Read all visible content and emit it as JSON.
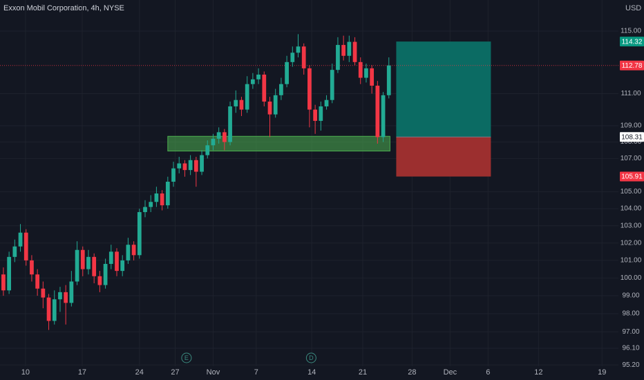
{
  "chart_data": {
    "type": "candlestick",
    "title": "Exxon Mobil Corporation, 4h, NYSE",
    "currency": "USD",
    "up_color": "#22ab94",
    "down_color": "#f23645",
    "log_scale": true,
    "grid": true,
    "xlim": [
      -0.6,
      108.5
    ],
    "ylim": [
      95.13,
      117.04
    ],
    "xticks": [
      {
        "value": 3.9,
        "label": "10"
      },
      {
        "value": 13.9,
        "label": "17"
      },
      {
        "value": 24.0,
        "label": "24"
      },
      {
        "value": 30.3,
        "label": "27"
      },
      {
        "value": 37.0,
        "label": "Nov"
      },
      {
        "value": 44.6,
        "label": "7"
      },
      {
        "value": 54.4,
        "label": "14"
      },
      {
        "value": 63.4,
        "label": "21"
      },
      {
        "value": 72.1,
        "label": "28"
      },
      {
        "value": 78.8,
        "label": "Dec"
      },
      {
        "value": 85.5,
        "label": "6"
      },
      {
        "value": 94.4,
        "label": "12"
      },
      {
        "value": 105.6,
        "label": "19"
      }
    ],
    "yticks": [
      {
        "value": 115,
        "label": "115.00"
      },
      {
        "value": 111,
        "label": "111.00"
      },
      {
        "value": 109,
        "label": "109.00"
      },
      {
        "value": 108,
        "label": "108.00"
      },
      {
        "value": 107,
        "label": "107.00"
      },
      {
        "value": 105,
        "label": "105.00"
      },
      {
        "value": 104,
        "label": "104.00"
      },
      {
        "value": 103,
        "label": "103.00"
      },
      {
        "value": 102,
        "label": "102.00"
      },
      {
        "value": 101,
        "label": "101.00"
      },
      {
        "value": 100,
        "label": "100.00"
      },
      {
        "value": 99,
        "label": "99.00"
      },
      {
        "value": 98,
        "label": "98.00"
      },
      {
        "value": 97,
        "label": "97.00"
      },
      {
        "value": 96.1,
        "label": "96.10"
      },
      {
        "value": 95.2,
        "label": "95.20"
      }
    ],
    "candles": [
      {
        "o": 100.2,
        "h": 100.6,
        "l": 99.0,
        "c": 99.3
      },
      {
        "o": 99.3,
        "h": 101.5,
        "l": 99.1,
        "c": 101.2
      },
      {
        "o": 101.2,
        "h": 102.2,
        "l": 100.9,
        "c": 101.8
      },
      {
        "o": 101.8,
        "h": 103.1,
        "l": 101.5,
        "c": 102.6
      },
      {
        "o": 102.6,
        "h": 102.8,
        "l": 100.7,
        "c": 101.0
      },
      {
        "o": 101.0,
        "h": 101.3,
        "l": 99.8,
        "c": 100.2
      },
      {
        "o": 100.2,
        "h": 100.5,
        "l": 99.0,
        "c": 99.4
      },
      {
        "o": 99.4,
        "h": 99.8,
        "l": 98.3,
        "c": 98.9
      },
      {
        "o": 98.9,
        "h": 99.1,
        "l": 97.1,
        "c": 97.6
      },
      {
        "o": 97.6,
        "h": 99.3,
        "l": 97.4,
        "c": 98.8
      },
      {
        "o": 98.8,
        "h": 99.5,
        "l": 98.1,
        "c": 99.2
      },
      {
        "o": 99.2,
        "h": 99.6,
        "l": 97.4,
        "c": 98.6
      },
      {
        "o": 98.6,
        "h": 100.4,
        "l": 98.4,
        "c": 99.8
      },
      {
        "o": 99.8,
        "h": 102.1,
        "l": 99.6,
        "c": 101.6
      },
      {
        "o": 101.6,
        "h": 101.8,
        "l": 100.1,
        "c": 100.5
      },
      {
        "o": 100.5,
        "h": 101.6,
        "l": 100.2,
        "c": 101.2
      },
      {
        "o": 101.2,
        "h": 101.4,
        "l": 99.7,
        "c": 100.1
      },
      {
        "o": 100.1,
        "h": 100.4,
        "l": 99.2,
        "c": 99.6
      },
      {
        "o": 99.6,
        "h": 101.1,
        "l": 99.4,
        "c": 100.8
      },
      {
        "o": 100.8,
        "h": 101.9,
        "l": 100.5,
        "c": 101.5
      },
      {
        "o": 101.5,
        "h": 101.7,
        "l": 100.1,
        "c": 100.4
      },
      {
        "o": 100.4,
        "h": 101.3,
        "l": 100.1,
        "c": 101.0
      },
      {
        "o": 101.0,
        "h": 102.3,
        "l": 100.8,
        "c": 101.9
      },
      {
        "o": 101.9,
        "h": 102.1,
        "l": 101.0,
        "c": 101.3
      },
      {
        "o": 101.3,
        "h": 104.0,
        "l": 101.1,
        "c": 103.8
      },
      {
        "o": 103.8,
        "h": 104.5,
        "l": 103.5,
        "c": 104.1
      },
      {
        "o": 104.1,
        "h": 104.8,
        "l": 103.8,
        "c": 104.4
      },
      {
        "o": 104.4,
        "h": 105.3,
        "l": 104.1,
        "c": 104.9
      },
      {
        "o": 104.9,
        "h": 105.1,
        "l": 103.9,
        "c": 104.2
      },
      {
        "o": 104.2,
        "h": 105.9,
        "l": 104.0,
        "c": 105.6
      },
      {
        "o": 105.6,
        "h": 106.8,
        "l": 105.3,
        "c": 106.4
      },
      {
        "o": 106.4,
        "h": 107.1,
        "l": 106.1,
        "c": 106.7
      },
      {
        "o": 106.7,
        "h": 106.9,
        "l": 105.9,
        "c": 106.3
      },
      {
        "o": 106.3,
        "h": 107.2,
        "l": 106.0,
        "c": 106.9
      },
      {
        "o": 106.9,
        "h": 107.1,
        "l": 105.3,
        "c": 106.2
      },
      {
        "o": 106.2,
        "h": 107.5,
        "l": 106.0,
        "c": 107.2
      },
      {
        "o": 107.2,
        "h": 108.1,
        "l": 107.0,
        "c": 107.8
      },
      {
        "o": 107.8,
        "h": 108.5,
        "l": 107.5,
        "c": 108.2
      },
      {
        "o": 108.2,
        "h": 108.9,
        "l": 107.9,
        "c": 108.6
      },
      {
        "o": 108.6,
        "h": 108.8,
        "l": 107.5,
        "c": 108.0
      },
      {
        "o": 108.0,
        "h": 110.5,
        "l": 107.8,
        "c": 110.2
      },
      {
        "o": 110.2,
        "h": 111.2,
        "l": 109.8,
        "c": 110.6
      },
      {
        "o": 110.6,
        "h": 110.8,
        "l": 109.6,
        "c": 110.0
      },
      {
        "o": 110.0,
        "h": 112.1,
        "l": 109.8,
        "c": 111.6
      },
      {
        "o": 111.6,
        "h": 112.3,
        "l": 111.3,
        "c": 111.9
      },
      {
        "o": 111.9,
        "h": 112.6,
        "l": 111.6,
        "c": 112.2
      },
      {
        "o": 112.2,
        "h": 112.4,
        "l": 110.2,
        "c": 110.5
      },
      {
        "o": 110.5,
        "h": 110.8,
        "l": 108.3,
        "c": 109.7
      },
      {
        "o": 109.7,
        "h": 111.3,
        "l": 109.5,
        "c": 110.9
      },
      {
        "o": 110.9,
        "h": 112.0,
        "l": 110.6,
        "c": 111.6
      },
      {
        "o": 111.6,
        "h": 113.4,
        "l": 111.4,
        "c": 113.0
      },
      {
        "o": 113.0,
        "h": 114.0,
        "l": 112.7,
        "c": 113.6
      },
      {
        "o": 113.6,
        "h": 114.8,
        "l": 113.3,
        "c": 114.0
      },
      {
        "o": 114.0,
        "h": 114.2,
        "l": 112.2,
        "c": 112.6
      },
      {
        "o": 112.6,
        "h": 112.8,
        "l": 108.9,
        "c": 110.0
      },
      {
        "o": 110.0,
        "h": 110.3,
        "l": 108.5,
        "c": 109.3
      },
      {
        "o": 109.3,
        "h": 110.5,
        "l": 108.7,
        "c": 110.2
      },
      {
        "o": 110.2,
        "h": 110.9,
        "l": 110.0,
        "c": 110.6
      },
      {
        "o": 110.6,
        "h": 112.9,
        "l": 110.4,
        "c": 112.5
      },
      {
        "o": 112.5,
        "h": 114.6,
        "l": 112.3,
        "c": 114.1
      },
      {
        "o": 114.1,
        "h": 114.7,
        "l": 113.1,
        "c": 113.4
      },
      {
        "o": 113.4,
        "h": 114.7,
        "l": 113.0,
        "c": 114.3
      },
      {
        "o": 114.3,
        "h": 114.6,
        "l": 112.8,
        "c": 113.0
      },
      {
        "o": 113.0,
        "h": 113.3,
        "l": 111.6,
        "c": 112.0
      },
      {
        "o": 112.0,
        "h": 112.9,
        "l": 111.7,
        "c": 112.6
      },
      {
        "o": 112.6,
        "h": 112.8,
        "l": 111.0,
        "c": 111.5
      },
      {
        "o": 111.5,
        "h": 111.8,
        "l": 107.9,
        "c": 108.3
      },
      {
        "o": 108.3,
        "h": 111.1,
        "l": 108.0,
        "c": 110.9
      },
      {
        "o": 110.9,
        "h": 113.3,
        "l": 110.7,
        "c": 112.78
      }
    ],
    "zone": {
      "x_start": 29.0,
      "x_end": 68.2,
      "top": 108.35,
      "bottom": 107.45,
      "color": "#4caf50"
    },
    "position": {
      "x_start": 69.3,
      "x_end": 86.0,
      "target": 114.32,
      "entry": 108.31,
      "stop": 105.91,
      "profit_color": "#0b6b63",
      "loss_color": "#9c2f2f",
      "target_tag": "#089981",
      "entry_tag": "#ffffff",
      "stop_tag": "#f23645"
    },
    "last_price": 112.78,
    "last_price_color": "#f23645",
    "events": [
      {
        "label": "E",
        "x": 32.3
      },
      {
        "label": "D",
        "x": 54.3
      }
    ]
  }
}
